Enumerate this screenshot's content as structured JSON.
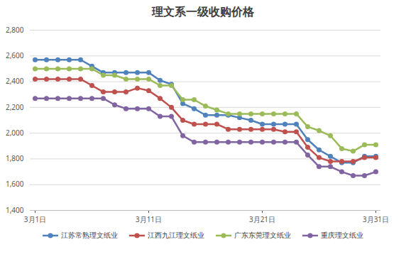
{
  "chart_data": {
    "type": "line",
    "title": "理文系一级收购价格",
    "categories": [
      "3月1日",
      null,
      null,
      null,
      null,
      null,
      null,
      null,
      null,
      null,
      "3月11日",
      null,
      null,
      null,
      null,
      null,
      null,
      null,
      null,
      null,
      "3月21日",
      null,
      null,
      null,
      null,
      null,
      null,
      null,
      null,
      null,
      "3月31日"
    ],
    "series": [
      {
        "name": "江苏常熟理文纸业",
        "color": "#4f81bd",
        "values": [
          2570,
          2570,
          2570,
          2570,
          2570,
          2520,
          2470,
          2470,
          2470,
          2470,
          2470,
          2410,
          2380,
          2230,
          2190,
          2140,
          2140,
          2140,
          2120,
          2100,
          2070,
          2070,
          2070,
          2070,
          1950,
          1870,
          1820,
          1770,
          1770,
          1820,
          1820
        ]
      },
      {
        "name": "江西九江理文纸业",
        "color": "#c0504d",
        "values": [
          2420,
          2420,
          2420,
          2420,
          2420,
          2370,
          2320,
          2320,
          2320,
          2350,
          2330,
          2270,
          2200,
          2100,
          2070,
          2070,
          2070,
          2030,
          2030,
          2030,
          2030,
          2030,
          2010,
          2010,
          1890,
          1810,
          1780,
          1780,
          1780,
          1810,
          1810
        ]
      },
      {
        "name": "广东东莞理文纸业",
        "color": "#9bbb59",
        "values": [
          2500,
          2500,
          2500,
          2500,
          2500,
          2500,
          2450,
          2450,
          2420,
          2420,
          2420,
          2370,
          2370,
          2260,
          2260,
          2210,
          2180,
          2150,
          2150,
          2150,
          2150,
          2150,
          2150,
          2150,
          2050,
          2020,
          1980,
          1880,
          1860,
          1910,
          1910
        ]
      },
      {
        "name": "重庆理文纸业",
        "color": "#8064a2",
        "values": [
          2270,
          2270,
          2270,
          2270,
          2270,
          2270,
          2270,
          2220,
          2190,
          2190,
          2190,
          2130,
          2130,
          1980,
          1930,
          1930,
          1930,
          1930,
          1930,
          1930,
          1930,
          1930,
          1930,
          1930,
          1830,
          1740,
          1740,
          1700,
          1670,
          1670,
          1700
        ]
      }
    ],
    "ylim": [
      1400,
      2800
    ],
    "yticks": [
      1400,
      1600,
      1800,
      2000,
      2200,
      2400,
      2600,
      2800
    ],
    "grid": true,
    "legend": "bottom",
    "marker": "circle"
  }
}
